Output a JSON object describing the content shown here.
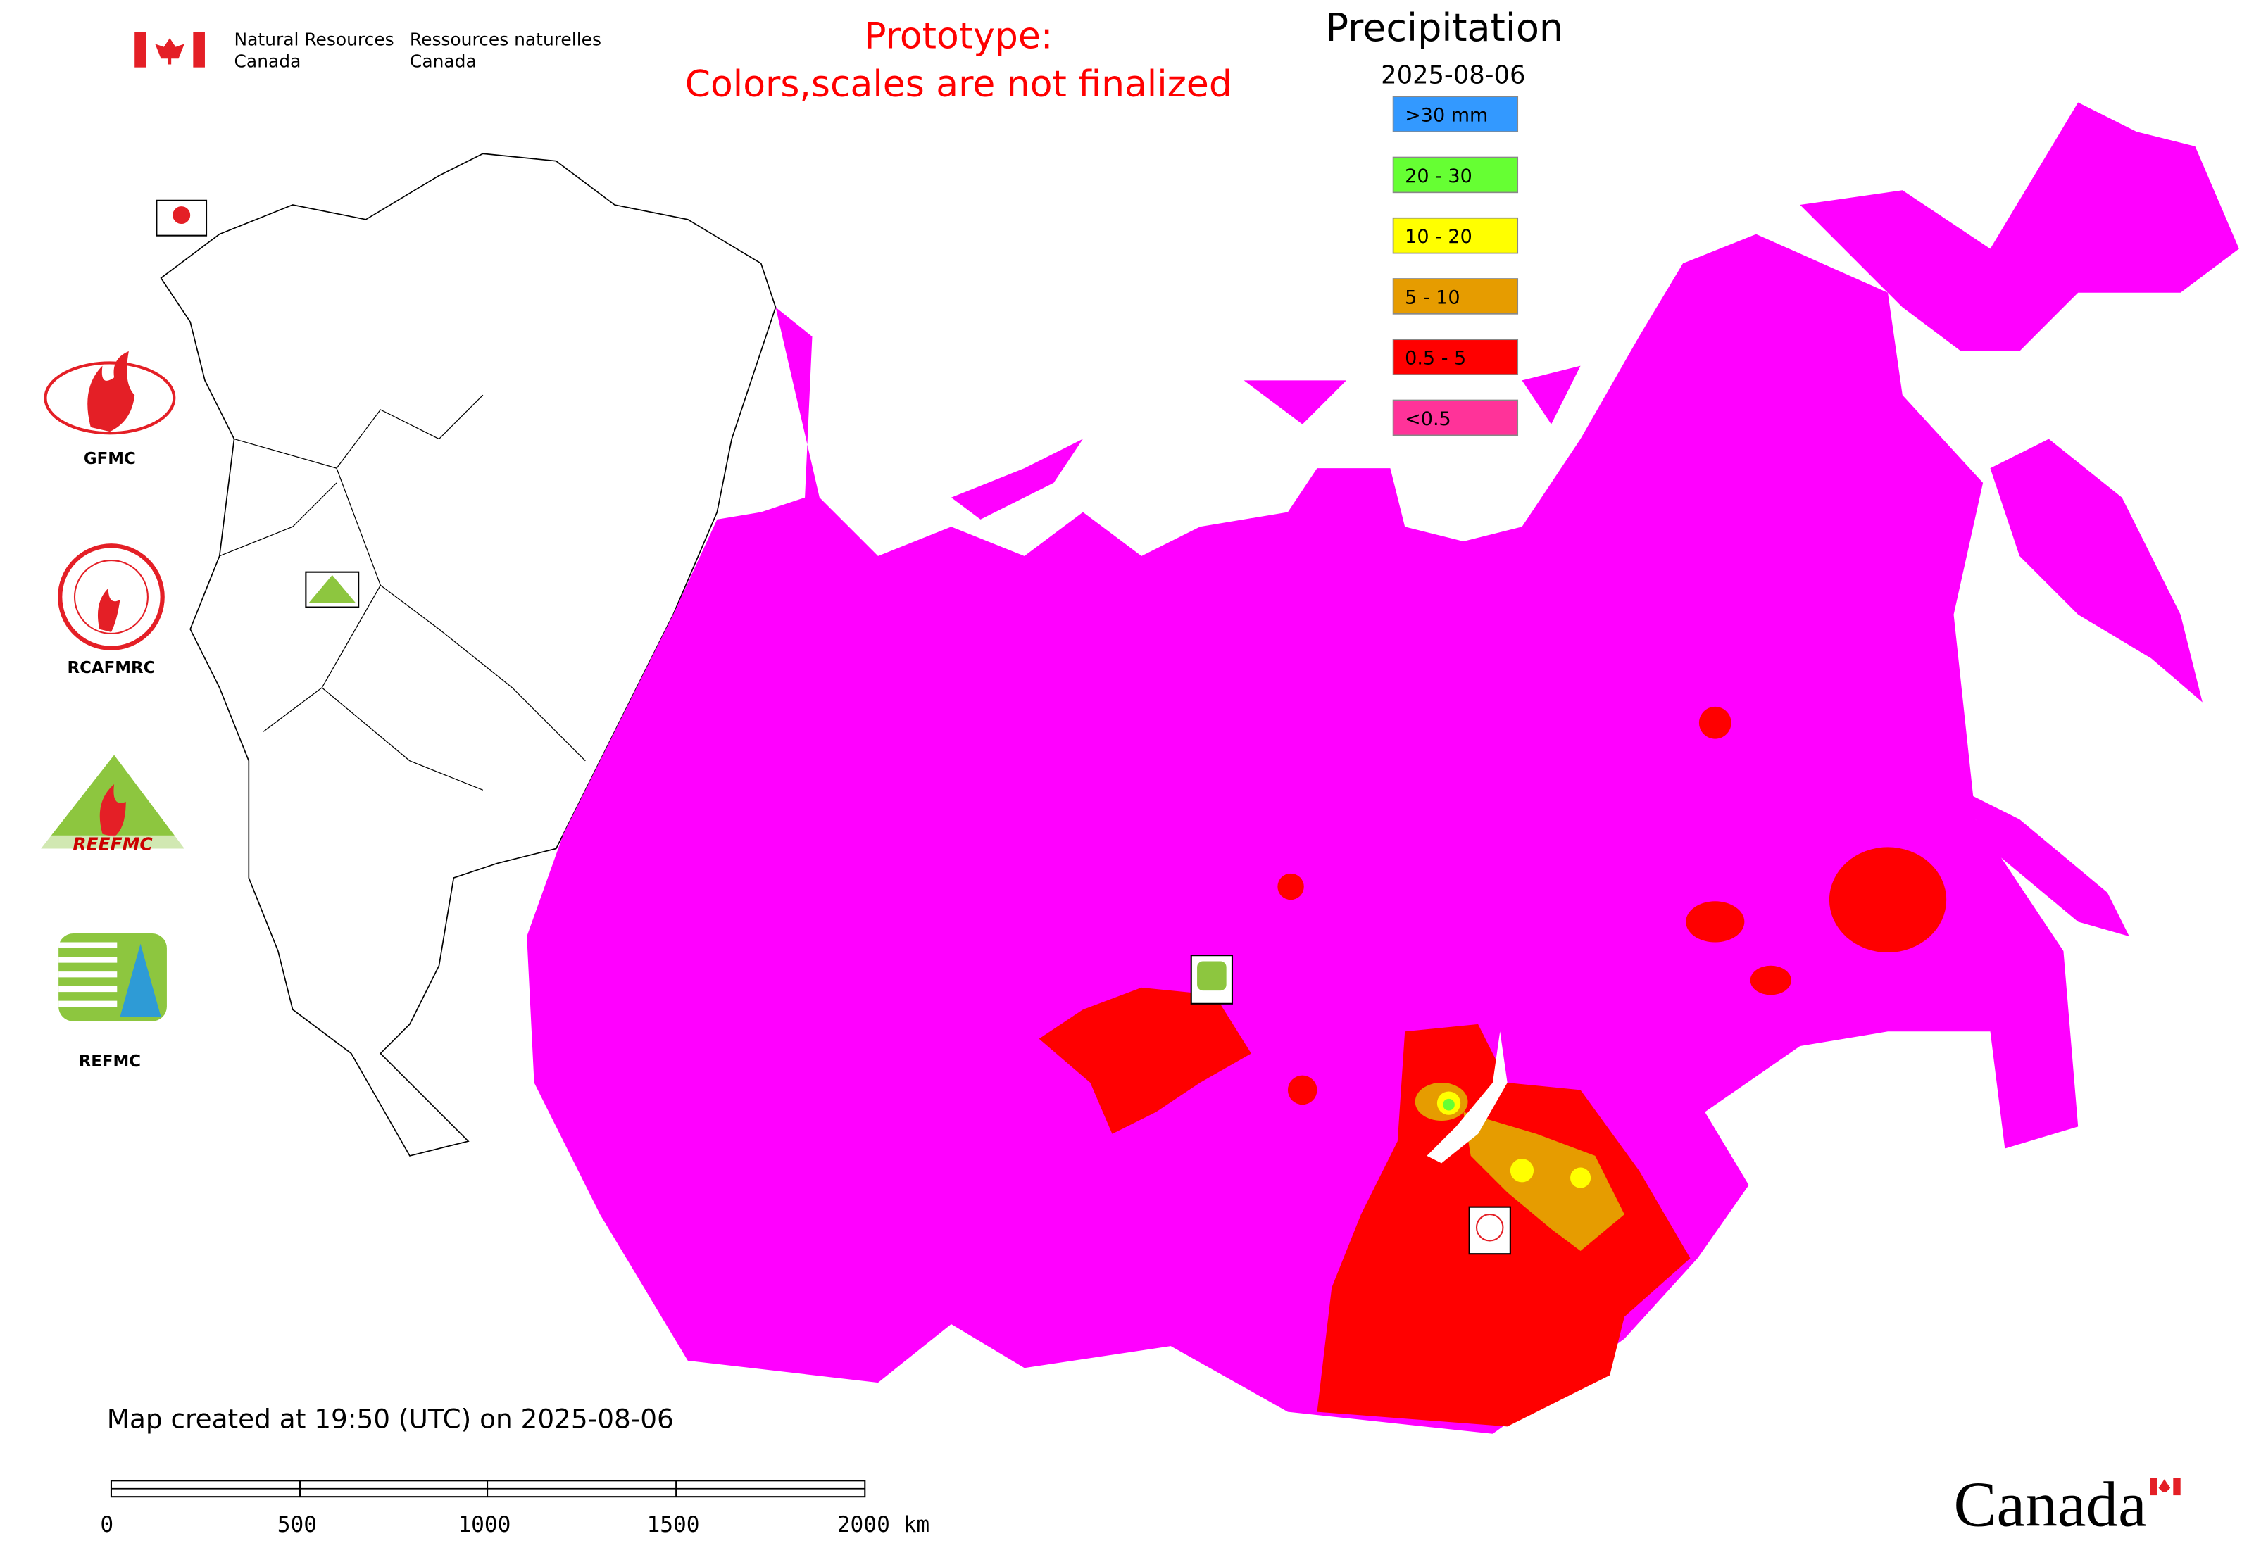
{
  "header": {
    "agency_en_line1": "Natural Resources",
    "agency_en_line2": "Canada",
    "agency_fr_line1": "Ressources naturelles",
    "agency_fr_line2": "Canada",
    "notice_line1": "Prototype:",
    "notice_line2": "Colors,scales are not finalized"
  },
  "legend": {
    "title": "Precipitation",
    "date": "2025-08-06",
    "items": [
      {
        "label": ">30 mm",
        "color": "#3399ff"
      },
      {
        "label": "20 - 30",
        "color": "#66ff33"
      },
      {
        "label": "10 - 20",
        "color": "#ffff00"
      },
      {
        "label": "5 - 10",
        "color": "#e69c00"
      },
      {
        "label": "0.5 - 5",
        "color": "#ff0000"
      },
      {
        "label": "<0.5",
        "color": "#ff3399"
      }
    ]
  },
  "logos": [
    "GFMC",
    "RCAFMRC",
    "REEFMC",
    "REFMC"
  ],
  "footer": {
    "created": "Map created at 19:50 (UTC) on 2025-08-06",
    "scale_labels": [
      "0",
      "500",
      "1000",
      "1500",
      "2000 km"
    ],
    "wordmark": "Canada"
  }
}
